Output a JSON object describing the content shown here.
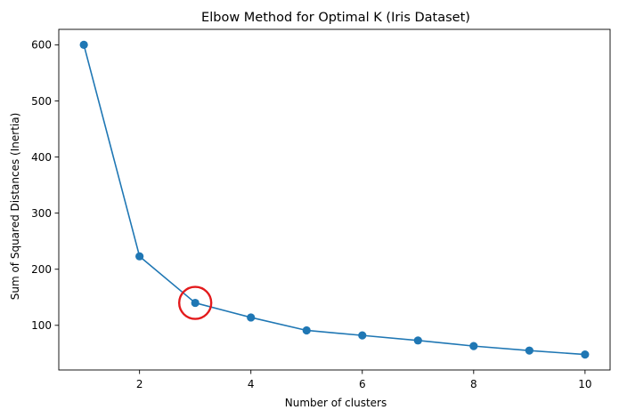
{
  "chart_data": {
    "type": "line",
    "title": "Elbow Method for Optimal K (Iris Dataset)",
    "xlabel": "Number of clusters",
    "ylabel": "Sum of Squared Distances (Inertia)",
    "x": [
      1,
      2,
      3,
      4,
      5,
      6,
      7,
      8,
      9,
      10
    ],
    "series": [
      {
        "values": [
          600,
          223,
          140,
          114,
          91,
          82,
          73,
          63,
          55,
          48
        ],
        "color": "#1f77b4",
        "marker": "circle"
      }
    ],
    "xlim": [
      0.55,
      10.45
    ],
    "ylim": [
      20.4,
      627.6
    ],
    "xticks": [
      2,
      4,
      6,
      8,
      10
    ],
    "yticks": [
      100,
      200,
      300,
      400,
      500,
      600
    ],
    "grid": false,
    "legend": "none",
    "annotations": [
      {
        "type": "circle-highlight",
        "x": 3,
        "y": 140,
        "color": "#e31a1c"
      }
    ]
  }
}
